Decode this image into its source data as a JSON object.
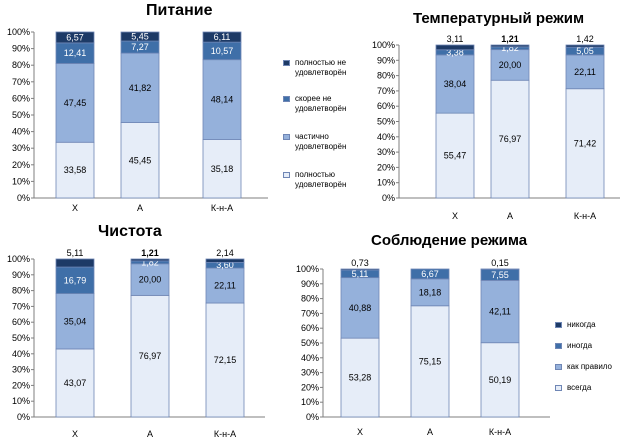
{
  "colors": {
    "s1": "#e6edf8",
    "s2": "#95b1db",
    "s3": "#3f6fa8",
    "s4": "#1d3a66",
    "border": "#6f86b5",
    "axis": "#7f7f7f"
  },
  "chart_data": [
    {
      "type": "bar",
      "stacked": true,
      "title": "Питание",
      "categories": [
        "Х",
        "А",
        "К-н-А"
      ],
      "ylim": [
        0,
        100
      ],
      "ytick_labels": [
        "0%",
        "10%",
        "20%",
        "30%",
        "40%",
        "50%",
        "60%",
        "70%",
        "80%",
        "90%",
        "100%"
      ],
      "series": [
        {
          "name": "полностью удовлетворён",
          "values": [
            33.58,
            45.45,
            35.18
          ],
          "labels": [
            "33,58",
            "45,45",
            "35,18"
          ]
        },
        {
          "name": "частично удовлетворён",
          "values": [
            47.45,
            41.82,
            48.14
          ],
          "labels": [
            "47,45",
            "41,82",
            "48,14"
          ]
        },
        {
          "name": "скорее не удовлетворён",
          "values": [
            12.41,
            7.27,
            10.57
          ],
          "labels": [
            "12,41",
            "7,27",
            "10,57"
          ]
        },
        {
          "name": "полностью не удовлетворён",
          "values": [
            6.57,
            5.45,
            6.11
          ],
          "labels": [
            "6,57",
            "5,45",
            "6,11"
          ]
        }
      ],
      "legend_position": "right"
    },
    {
      "type": "bar",
      "stacked": true,
      "title": "Температурный режим",
      "categories": [
        "Х",
        "А",
        "К-н-А"
      ],
      "ylim": [
        0,
        100
      ],
      "ytick_labels": [
        "0%",
        "10%",
        "20%",
        "30%",
        "40%",
        "50%",
        "60%",
        "70%",
        "80%",
        "90%",
        "100%"
      ],
      "series": [
        {
          "values": [
            55.47,
            76.97,
            71.42
          ],
          "labels": [
            "55,47",
            "76,97",
            "71,42"
          ]
        },
        {
          "values": [
            38.04,
            20.0,
            22.11
          ],
          "labels": [
            "38,04",
            "20,00",
            "22,11"
          ]
        },
        {
          "values": [
            3.38,
            1.82,
            5.05
          ],
          "labels": [
            "3,38",
            "1,82",
            "5,05"
          ]
        },
        {
          "values": [
            3.11,
            1.21,
            1.42
          ],
          "labels": [
            "3,11",
            "1,21",
            "1,42"
          ]
        }
      ]
    },
    {
      "type": "bar",
      "stacked": true,
      "title": "Чистота",
      "categories": [
        "Х",
        "А",
        "К-н-А"
      ],
      "ylim": [
        0,
        100
      ],
      "ytick_labels": [
        "0%",
        "10%",
        "20%",
        "30%",
        "40%",
        "50%",
        "60%",
        "70%",
        "80%",
        "90%",
        "100%"
      ],
      "series": [
        {
          "values": [
            43.07,
            76.97,
            72.15
          ],
          "labels": [
            "43,07",
            "76,97",
            "72,15"
          ]
        },
        {
          "values": [
            35.04,
            20.0,
            22.11
          ],
          "labels": [
            "35,04",
            "20,00",
            "22,11"
          ]
        },
        {
          "values": [
            16.79,
            1.82,
            3.6
          ],
          "labels": [
            "16,79",
            "1,82",
            "3,60"
          ]
        },
        {
          "values": [
            5.11,
            1.21,
            2.14
          ],
          "labels": [
            "5,11",
            "1,21",
            "2,14"
          ]
        }
      ]
    },
    {
      "type": "bar",
      "stacked": true,
      "title": "Соблюдение режима",
      "categories": [
        "Х",
        "А",
        "К-н-А"
      ],
      "ylim": [
        0,
        100
      ],
      "ytick_labels": [
        "0%",
        "10%",
        "20%",
        "30%",
        "40%",
        "50%",
        "60%",
        "70%",
        "80%",
        "90%",
        "100%"
      ],
      "series": [
        {
          "name": "всегда",
          "values": [
            53.28,
            75.15,
            50.19
          ],
          "labels": [
            "53,28",
            "75,15",
            "50,19"
          ]
        },
        {
          "name": "как правило",
          "values": [
            40.88,
            18.18,
            42.11
          ],
          "labels": [
            "40,88",
            "18,18",
            "42,11"
          ]
        },
        {
          "name": "иногда",
          "values": [
            5.11,
            6.67,
            7.55
          ],
          "labels": [
            "5,11",
            "6,67",
            "7,55"
          ]
        },
        {
          "name": "никогда",
          "values": [
            0.73,
            0.0,
            0.15
          ],
          "labels": [
            "0,73",
            "",
            "0,15"
          ]
        }
      ],
      "legend_position": "right"
    }
  ]
}
